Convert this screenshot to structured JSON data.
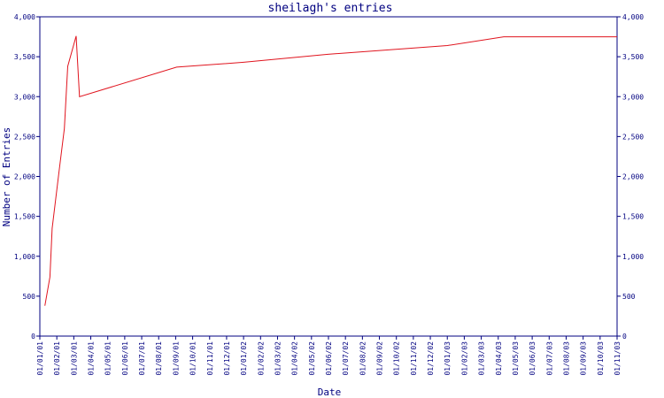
{
  "chart_data": {
    "type": "line",
    "title": "sheilagh's entries",
    "xlabel": "Date",
    "ylabel": "Number of Entries",
    "ylim": [
      0,
      4000
    ],
    "yticks": [
      0,
      500,
      1000,
      1500,
      2000,
      2500,
      3000,
      3500,
      4000
    ],
    "ytick_labels": [
      "0",
      "500",
      "1,000",
      "1,500",
      "2,000",
      "2,500",
      "3,000",
      "3,500",
      "4,000"
    ],
    "xtick_labels": [
      "01/01/01",
      "01/02/01",
      "01/03/01",
      "01/04/01",
      "01/05/01",
      "01/06/01",
      "01/07/01",
      "01/08/01",
      "01/09/01",
      "01/10/01",
      "01/11/01",
      "01/12/01",
      "01/01/02",
      "01/02/02",
      "01/03/02",
      "01/04/02",
      "01/05/02",
      "01/06/02",
      "01/07/02",
      "01/08/02",
      "01/09/02",
      "01/10/02",
      "01/11/02",
      "01/12/02",
      "01/01/03",
      "01/02/03",
      "01/03/03",
      "01/04/03",
      "01/05/03",
      "01/06/03",
      "01/07/03",
      "01/08/03",
      "01/09/03",
      "01/10/03",
      "01/11/03"
    ],
    "grid": false,
    "right_axis": true,
    "colors": {
      "axis": "#000080",
      "text": "#000080",
      "line": "#e0141e",
      "background": "#ffffff"
    },
    "series": [
      {
        "x": [
          "2001-01-10",
          "2001-01-19",
          "2001-01-23",
          "2001-02-05",
          "2001-02-14",
          "2001-02-20",
          "2001-03-07",
          "2001-03-13",
          "2001-09-03",
          "2002-01-01",
          "2002-06-01",
          "2003-01-01",
          "2003-04-12",
          "2003-11-01"
        ],
        "y": [
          380,
          740,
          1350,
          2100,
          2600,
          3380,
          3760,
          3000,
          3370,
          3430,
          3530,
          3640,
          3750,
          3750
        ]
      }
    ]
  }
}
